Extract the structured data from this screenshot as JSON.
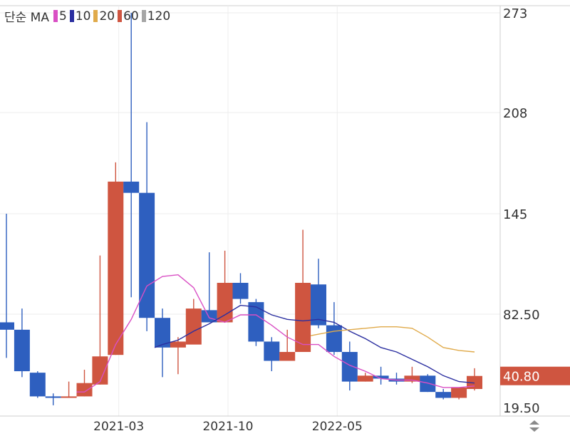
{
  "legend": {
    "label": "단순 MA",
    "items": [
      {
        "period": "5",
        "color": "#d94fc4"
      },
      {
        "period": "10",
        "color": "#2b2fa0"
      },
      {
        "period": "20",
        "color": "#e0aa4a"
      },
      {
        "period": "60",
        "color": "#cf5540"
      },
      {
        "period": "120",
        "color": "#a6a6a6"
      }
    ]
  },
  "chart_data": {
    "type": "candlestick",
    "y_ticks": [
      {
        "value": 273,
        "label": "273"
      },
      {
        "value": 208,
        "label": "208"
      },
      {
        "value": 145,
        "label": "145"
      },
      {
        "value": 82.5,
        "label": "82.50"
      },
      {
        "value": 19.5,
        "label": "19.50"
      }
    ],
    "x_ticks": [
      {
        "index": 7.2,
        "label": "2021-03"
      },
      {
        "index": 14.2,
        "label": "2021-10"
      },
      {
        "index": 21.2,
        "label": "2022-05"
      }
    ],
    "last_price": {
      "value": 40.8,
      "label": "40.80"
    },
    "up_color": "#cf5540",
    "down_color": "#2e5fbf",
    "candles": [
      {
        "i": 0,
        "o": 77,
        "h": 145,
        "l": 53,
        "c": 72
      },
      {
        "i": 1,
        "o": 72,
        "h": 86,
        "l": 40,
        "c": 44
      },
      {
        "i": 2,
        "o": 43,
        "h": 44,
        "l": 26,
        "c": 27
      },
      {
        "i": 3,
        "o": 27,
        "h": 29,
        "l": 21,
        "c": 26
      },
      {
        "i": 4,
        "o": 26,
        "h": 37,
        "l": 26,
        "c": 27
      },
      {
        "i": 5,
        "o": 27,
        "h": 45,
        "l": 27,
        "c": 36
      },
      {
        "i": 6,
        "o": 35,
        "h": 119,
        "l": 35,
        "c": 54
      },
      {
        "i": 7,
        "o": 55,
        "h": 177,
        "l": 55,
        "c": 165
      },
      {
        "i": 8,
        "o": 165,
        "h": 273,
        "l": 93,
        "c": 158
      },
      {
        "i": 9,
        "o": 158,
        "h": 202,
        "l": 71,
        "c": 80
      },
      {
        "i": 10,
        "o": 80,
        "h": 86,
        "l": 40,
        "c": 60
      },
      {
        "i": 11,
        "o": 60,
        "h": 67,
        "l": 42,
        "c": 64
      },
      {
        "i": 12,
        "o": 62,
        "h": 92,
        "l": 64,
        "c": 86
      },
      {
        "i": 13,
        "o": 85,
        "h": 121,
        "l": 79,
        "c": 77
      },
      {
        "i": 14,
        "o": 77,
        "h": 122,
        "l": 77,
        "c": 102
      },
      {
        "i": 15,
        "o": 102,
        "h": 108,
        "l": 89,
        "c": 92
      },
      {
        "i": 16,
        "o": 90,
        "h": 92,
        "l": 61,
        "c": 64
      },
      {
        "i": 17,
        "o": 64,
        "h": 67,
        "l": 44,
        "c": 51
      },
      {
        "i": 18,
        "o": 51,
        "h": 72,
        "l": 51,
        "c": 57
      },
      {
        "i": 19,
        "o": 57,
        "h": 135,
        "l": 57,
        "c": 102
      },
      {
        "i": 20,
        "o": 101,
        "h": 117,
        "l": 73,
        "c": 75
      },
      {
        "i": 21,
        "o": 75,
        "h": 90,
        "l": 55,
        "c": 57
      },
      {
        "i": 22,
        "o": 57,
        "h": 64,
        "l": 31,
        "c": 37
      },
      {
        "i": 23,
        "o": 37,
        "h": 43,
        "l": 37,
        "c": 41
      },
      {
        "i": 24,
        "o": 41,
        "h": 47,
        "l": 35,
        "c": 39
      },
      {
        "i": 25,
        "o": 39,
        "h": 43,
        "l": 35,
        "c": 37
      },
      {
        "i": 26,
        "o": 37,
        "h": 47,
        "l": 36,
        "c": 41
      },
      {
        "i": 27,
        "o": 41,
        "h": 42,
        "l": 30,
        "c": 30
      },
      {
        "i": 28,
        "o": 30,
        "h": 32,
        "l": 25,
        "c": 26
      },
      {
        "i": 29,
        "o": 26,
        "h": 33,
        "l": 25,
        "c": 33
      },
      {
        "i": 30,
        "o": 32,
        "h": 46,
        "l": 31,
        "c": 40.8
      }
    ],
    "series": [
      {
        "period": "5",
        "color": "#d94fc4",
        "values": [
          [
            4.5,
            30
          ],
          [
            5,
            30
          ],
          [
            6,
            37
          ],
          [
            7,
            62
          ],
          [
            8,
            79
          ],
          [
            9,
            100
          ],
          [
            10,
            106
          ],
          [
            11,
            107
          ],
          [
            12,
            99
          ],
          [
            13,
            80
          ],
          [
            14,
            77
          ],
          [
            15,
            82
          ],
          [
            16,
            82
          ],
          [
            17,
            75
          ],
          [
            18,
            67
          ],
          [
            19,
            62
          ],
          [
            20,
            62
          ],
          [
            21,
            54
          ],
          [
            22,
            48
          ],
          [
            23,
            44
          ],
          [
            24,
            39
          ],
          [
            25,
            38
          ],
          [
            26,
            38
          ],
          [
            27,
            36
          ],
          [
            28,
            33
          ],
          [
            29,
            33
          ],
          [
            30,
            34
          ]
        ]
      },
      {
        "period": "10",
        "color": "#2b2fa0",
        "values": [
          [
            9.5,
            60
          ],
          [
            10,
            62
          ],
          [
            11,
            65
          ],
          [
            12,
            71
          ],
          [
            13,
            76
          ],
          [
            14,
            82
          ],
          [
            15,
            88
          ],
          [
            16,
            87
          ],
          [
            17,
            82
          ],
          [
            18,
            79
          ],
          [
            19,
            78
          ],
          [
            20,
            79
          ],
          [
            21,
            77
          ],
          [
            22,
            71
          ],
          [
            23,
            66
          ],
          [
            24,
            60
          ],
          [
            25,
            57
          ],
          [
            26,
            52
          ],
          [
            27,
            47
          ],
          [
            28,
            41
          ],
          [
            29,
            37
          ],
          [
            30,
            36
          ]
        ]
      },
      {
        "period": "20",
        "color": "#e0aa4a",
        "values": [
          [
            19.5,
            68
          ],
          [
            20,
            69
          ],
          [
            21,
            71
          ],
          [
            22,
            72
          ],
          [
            23,
            73
          ],
          [
            24,
            74
          ],
          [
            25,
            74
          ],
          [
            26,
            73
          ],
          [
            27,
            67
          ],
          [
            28,
            60
          ],
          [
            29,
            58
          ],
          [
            30,
            57
          ]
        ]
      }
    ]
  }
}
